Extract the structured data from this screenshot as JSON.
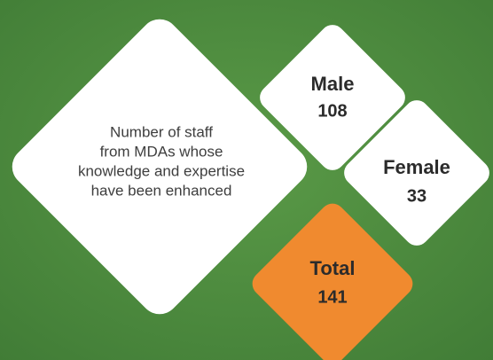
{
  "description": [
    "Number of staff",
    "from MDAs whose",
    "knowledge and expertise",
    "have been enhanced"
  ],
  "stats": [
    {
      "label": "Male",
      "value": 108
    },
    {
      "label": "Female",
      "value": 33
    },
    {
      "label": "Total",
      "value": 141
    }
  ]
}
